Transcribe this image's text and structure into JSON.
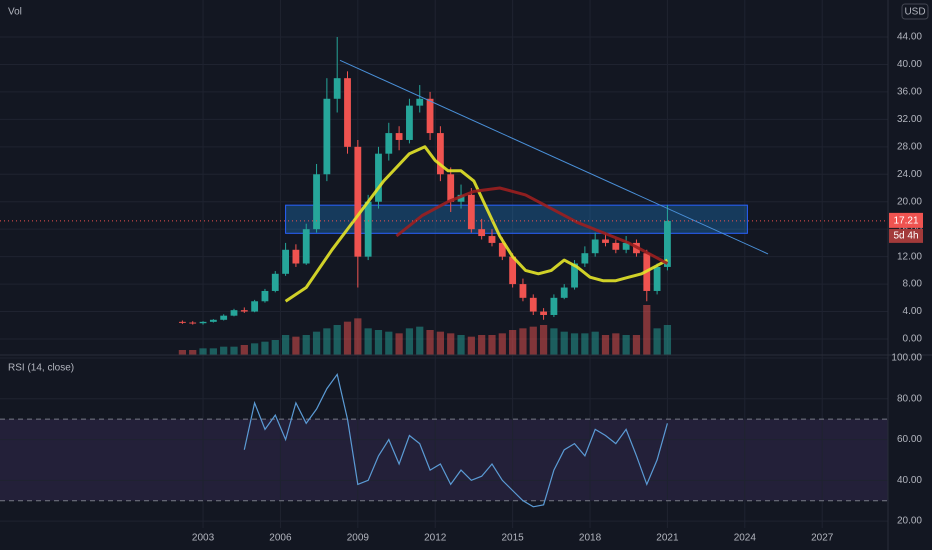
{
  "chart_data": [
    {
      "type": "candlestick",
      "volume_label": "Vol",
      "currency": "USD",
      "x": [
        2002.2,
        2002.6,
        2003.0,
        2003.4,
        2003.8,
        2004.2,
        2004.6,
        2005.0,
        2005.4,
        2005.8,
        2006.2,
        2006.6,
        2007.0,
        2007.4,
        2007.8,
        2008.2,
        2008.6,
        2009.0,
        2009.4,
        2009.8,
        2010.2,
        2010.6,
        2011.0,
        2011.4,
        2011.8,
        2012.2,
        2012.6,
        2013.0,
        2013.4,
        2013.8,
        2014.2,
        2014.6,
        2015.0,
        2015.4,
        2015.8,
        2016.2,
        2016.6,
        2017.0,
        2017.4,
        2017.8,
        2018.2,
        2018.6,
        2019.0,
        2019.4,
        2019.8,
        2020.2,
        2020.6,
        2021.0
      ],
      "open": [
        2.5,
        2.4,
        2.3,
        2.5,
        2.8,
        3.4,
        4.2,
        4.0,
        5.5,
        7.0,
        9.5,
        13.0,
        11.0,
        16.0,
        24.0,
        35.0,
        38.0,
        28.0,
        12.0,
        20.0,
        27.0,
        30.0,
        29.0,
        34.0,
        35.0,
        30.0,
        24.0,
        20.0,
        21.0,
        16.0,
        15.0,
        14.0,
        12.0,
        8.0,
        6.0,
        4.0,
        3.5,
        6.0,
        7.5,
        11.0,
        12.5,
        14.5,
        14.0,
        13.0,
        14.0,
        12.5,
        7.0,
        10.5
      ],
      "high": [
        2.7,
        2.6,
        2.6,
        2.9,
        3.6,
        4.4,
        4.6,
        5.7,
        7.3,
        9.9,
        14.0,
        13.8,
        16.8,
        25.5,
        38.0,
        44.0,
        39.0,
        29.0,
        21.0,
        28.0,
        31.5,
        31.0,
        35.0,
        37.0,
        36.0,
        31.0,
        25.0,
        22.5,
        22.0,
        17.5,
        16.0,
        14.8,
        12.5,
        8.8,
        6.5,
        4.5,
        6.5,
        8.0,
        11.5,
        13.5,
        15.5,
        15.5,
        14.5,
        15.0,
        14.5,
        13.0,
        11.0,
        19.5
      ],
      "low": [
        2.2,
        2.1,
        2.1,
        2.4,
        2.7,
        3.3,
        3.8,
        3.9,
        5.3,
        6.8,
        9.2,
        10.5,
        10.8,
        15.5,
        23.0,
        33.0,
        27.0,
        7.5,
        11.5,
        19.0,
        26.0,
        27.5,
        28.5,
        33.0,
        29.0,
        23.0,
        18.5,
        19.0,
        15.5,
        14.5,
        13.5,
        11.5,
        7.5,
        5.5,
        3.5,
        2.8,
        3.2,
        5.8,
        7.2,
        10.5,
        12.0,
        13.5,
        12.5,
        12.5,
        12.0,
        5.5,
        6.5,
        10.0
      ],
      "close": [
        2.4,
        2.3,
        2.5,
        2.8,
        3.4,
        4.2,
        4.0,
        5.5,
        7.0,
        9.5,
        13.0,
        11.0,
        16.0,
        24.0,
        35.0,
        38.0,
        28.0,
        12.0,
        20.0,
        27.0,
        30.0,
        29.0,
        34.0,
        35.0,
        30.0,
        24.0,
        20.0,
        21.0,
        16.0,
        15.0,
        14.0,
        12.0,
        8.0,
        6.0,
        4.0,
        3.5,
        6.0,
        7.5,
        11.0,
        12.5,
        14.5,
        14.0,
        13.0,
        14.0,
        12.5,
        7.0,
        10.5,
        17.2
      ],
      "volume": [
        3,
        3,
        4,
        4,
        5,
        5,
        6,
        7,
        8,
        9,
        12,
        11,
        12,
        14,
        16,
        18,
        20,
        22,
        16,
        15,
        14,
        13,
        16,
        17,
        15,
        14,
        13,
        12,
        11,
        12,
        12,
        13,
        15,
        16,
        17,
        18,
        16,
        14,
        13,
        13,
        14,
        12,
        13,
        12,
        12,
        30,
        16,
        18
      ],
      "up_color": "#26a69a",
      "down_color": "#ef5350",
      "overlays": [
        {
          "color": "#e6e629",
          "x": [
            2006.2,
            2007.0,
            2008.0,
            2009.0,
            2010.0,
            2011.0,
            2011.6,
            2012.0,
            2012.5,
            2013.0,
            2013.5,
            2014.0,
            2014.5,
            2015.0,
            2015.5,
            2016.0,
            2016.5,
            2017.0,
            2017.5,
            2018.0,
            2018.5,
            2019.0,
            2019.5,
            2020.0,
            2020.5,
            2021.0
          ],
          "values": [
            5.5,
            7.5,
            13,
            18,
            23,
            27,
            28,
            26,
            24.5,
            24.5,
            23,
            19,
            15,
            12,
            10,
            9.5,
            10,
            11.5,
            10.5,
            9,
            8.5,
            8.5,
            9,
            9.5,
            10.5,
            11.5
          ]
        },
        {
          "color": "#9c1f1f",
          "x": [
            2010.5,
            2011.5,
            2012.5,
            2013.5,
            2014.5,
            2015.5,
            2016.5,
            2017.5,
            2018.5,
            2019.5,
            2020.5,
            2021.0
          ],
          "values": [
            15,
            18,
            20,
            21.5,
            22,
            21,
            19,
            17,
            15.5,
            14,
            12,
            11
          ]
        }
      ],
      "trendline": {
        "color": "#4a90d9",
        "x": [
          2008.31,
          2024.9
        ],
        "values": [
          40.6,
          12.4
        ]
      },
      "zone": {
        "x": [
          2006.2,
          2024.1
        ],
        "values": [
          15.4,
          19.5
        ]
      },
      "last_price": 17.21,
      "countdown": "5d 4h",
      "xlim": [
        1995.13,
        2029.55
      ],
      "ylim": [
        -2.33,
        49.39
      ],
      "yticks": [
        {
          "value": 0,
          "label": "0.00"
        },
        {
          "value": 4,
          "label": "4.00"
        },
        {
          "value": 8,
          "label": "8.00"
        },
        {
          "value": 12,
          "label": "12.00"
        },
        {
          "value": 16,
          "label": "16.00"
        },
        {
          "value": 20,
          "label": "20.00"
        },
        {
          "value": 24,
          "label": "24.00"
        },
        {
          "value": 28,
          "label": "28.00"
        },
        {
          "value": 32,
          "label": "32.00"
        },
        {
          "value": 36,
          "label": "36.00"
        },
        {
          "value": 40,
          "label": "40.00"
        },
        {
          "value": 44,
          "label": "44.00"
        }
      ],
      "grid": true
    },
    {
      "type": "line",
      "title": "RSI (14, close)",
      "color": "#5b9bd5",
      "x": [
        2004.6,
        2005.0,
        2005.4,
        2005.8,
        2006.2,
        2006.6,
        2007.0,
        2007.4,
        2007.8,
        2008.2,
        2008.6,
        2009.0,
        2009.4,
        2009.8,
        2010.2,
        2010.6,
        2011.0,
        2011.4,
        2011.8,
        2012.2,
        2012.6,
        2013.0,
        2013.4,
        2013.8,
        2014.2,
        2014.6,
        2015.0,
        2015.4,
        2015.8,
        2016.2,
        2016.6,
        2017.0,
        2017.4,
        2017.8,
        2018.2,
        2018.6,
        2019.0,
        2019.4,
        2019.8,
        2020.2,
        2020.6,
        2021.0
      ],
      "values": [
        55,
        78,
        65,
        72,
        60,
        78,
        68,
        75,
        85,
        92,
        70,
        38,
        40,
        52,
        60,
        48,
        62,
        58,
        45,
        48,
        38,
        45,
        40,
        42,
        48,
        40,
        35,
        30,
        27,
        28,
        45,
        55,
        58,
        52,
        65,
        62,
        58,
        65,
        52,
        38,
        50,
        68
      ],
      "band": [
        30,
        70
      ],
      "band_color": "#7e57c2",
      "xlim": [
        1995.13,
        2029.55
      ],
      "ylim": [
        16.6,
        101.5
      ],
      "xticks": [
        2003,
        2006,
        2009,
        2012,
        2015,
        2018,
        2021,
        2024,
        2027
      ],
      "yticks": [
        {
          "value": 20,
          "label": "20.00"
        },
        {
          "value": 40,
          "label": "40.00"
        },
        {
          "value": 60,
          "label": "60.00"
        },
        {
          "value": 80,
          "label": "80.00"
        },
        {
          "value": 100,
          "label": "100.00"
        }
      ],
      "grid": true
    }
  ]
}
